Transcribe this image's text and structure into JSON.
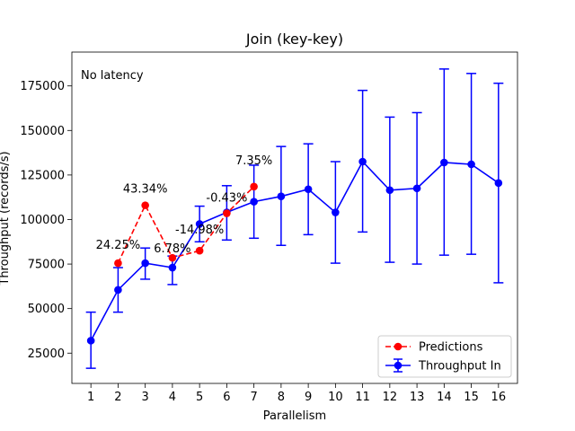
{
  "chart_data": {
    "type": "line",
    "title": "Join (key-key)",
    "xlabel": "Parallelism",
    "ylabel": "Throughput (records/s)",
    "annotation": "No latency",
    "xlim": [
      0.3,
      16.7
    ],
    "ylim": [
      8000,
      194000
    ],
    "xticks": [
      1,
      2,
      3,
      4,
      5,
      6,
      7,
      8,
      9,
      10,
      11,
      12,
      13,
      14,
      15,
      16
    ],
    "yticks": [
      25000,
      50000,
      75000,
      100000,
      125000,
      150000,
      175000
    ],
    "ytick_labels": [
      "25000",
      "50000",
      "75000",
      "100000",
      "125000",
      "150000",
      "175000"
    ],
    "legend_position": "lower-right",
    "series": [
      {
        "name": "Predictions",
        "style": "dashed",
        "marker": "circle",
        "color": "#ff0000",
        "x": [
          2,
          3,
          4,
          5,
          6,
          7
        ],
        "y": [
          75500,
          108000,
          78500,
          82500,
          103500,
          118500
        ],
        "labels": [
          "24.25%",
          "43.34%",
          "6.78%",
          "-14.98%",
          "-0.43%",
          "7.35%"
        ]
      },
      {
        "name": "Throughput In",
        "style": "solid",
        "marker": "circle",
        "color": "#0000ff",
        "x": [
          1,
          2,
          3,
          4,
          5,
          6,
          7,
          8,
          9,
          10,
          11,
          12,
          13,
          14,
          15,
          16
        ],
        "y": [
          32000,
          60500,
          75500,
          73000,
          97500,
          104000,
          110000,
          113000,
          117000,
          104000,
          132500,
          116500,
          117500,
          132000,
          131000,
          120500
        ],
        "err_low": [
          16500,
          48000,
          66500,
          63500,
          87500,
          88500,
          89500,
          85500,
          91500,
          75500,
          93000,
          76000,
          75000,
          80000,
          80500,
          64500
        ],
        "err_high": [
          48000,
          73000,
          84000,
          79500,
          107500,
          119000,
          130500,
          141000,
          142500,
          132500,
          172500,
          157500,
          160000,
          184500,
          182000,
          176500
        ]
      }
    ]
  }
}
